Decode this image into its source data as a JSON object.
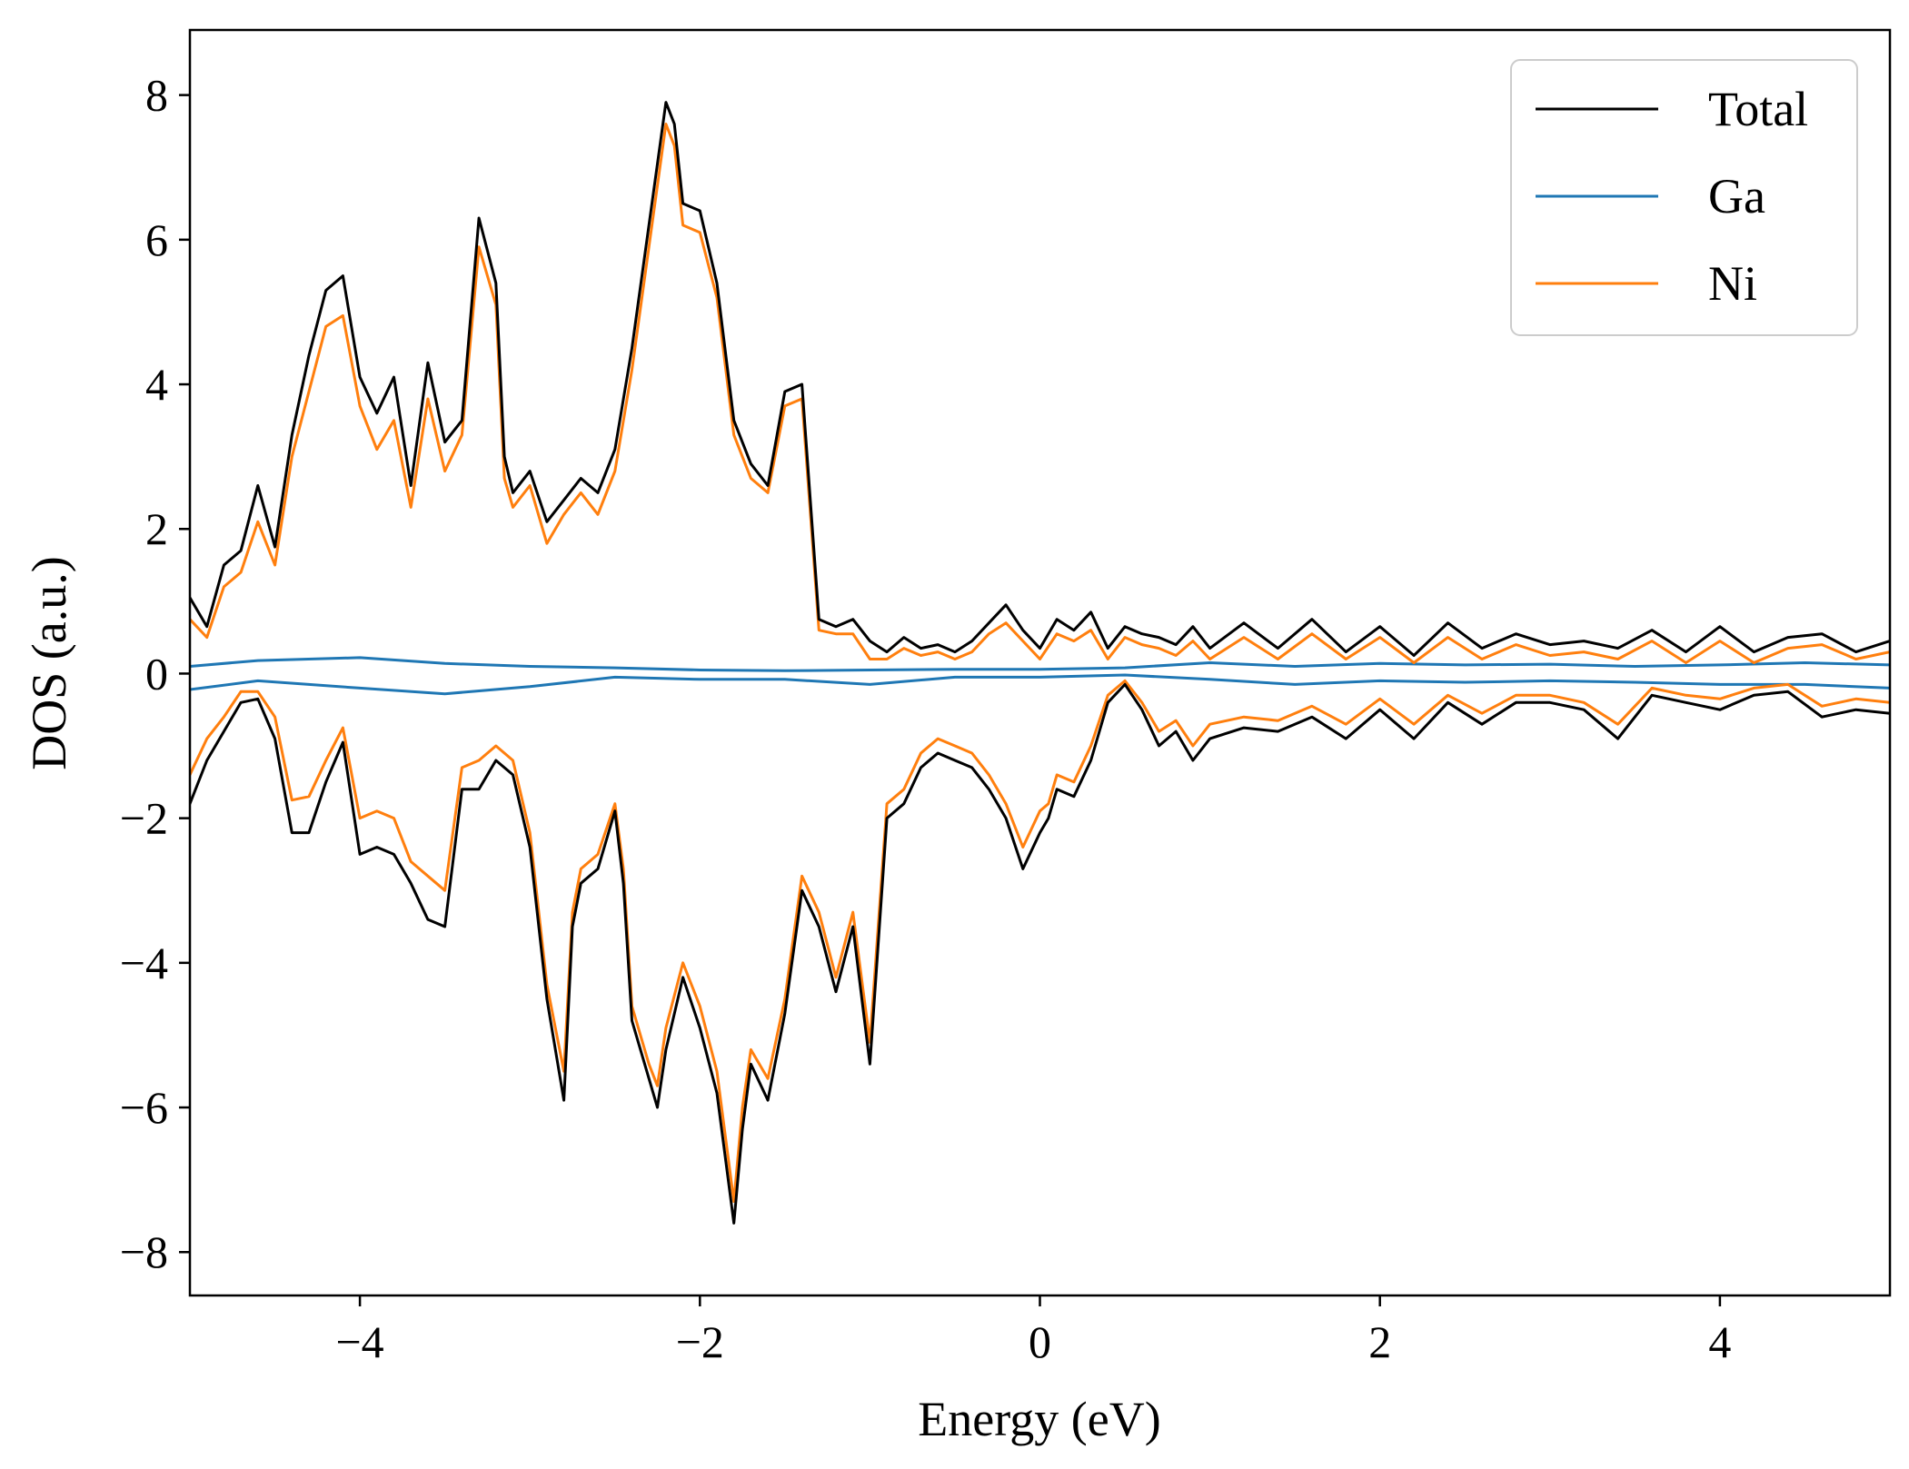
{
  "chart_data": {
    "type": "line",
    "title": "",
    "xlabel": "Energy (eV)",
    "ylabel": "DOS (a.u.)",
    "xlim": [
      -5,
      5
    ],
    "ylim": [
      -8.6,
      8.9
    ],
    "xticks": [
      -4,
      -2,
      0,
      2,
      4
    ],
    "xtick_labels": [
      "−4",
      "−2",
      "0",
      "2",
      "4"
    ],
    "yticks": [
      -8,
      -6,
      -4,
      -2,
      0,
      2,
      4,
      6,
      8
    ],
    "ytick_labels": [
      "−8",
      "−6",
      "−4",
      "−2",
      "0",
      "2",
      "4",
      "6",
      "8"
    ],
    "grid": false,
    "legend_position": "top-right",
    "series": [
      {
        "name": "Total",
        "color": "#000000",
        "spin_up": {
          "x": [
            -5.0,
            -4.9,
            -4.8,
            -4.7,
            -4.6,
            -4.5,
            -4.4,
            -4.3,
            -4.2,
            -4.1,
            -4.0,
            -3.9,
            -3.8,
            -3.7,
            -3.6,
            -3.5,
            -3.4,
            -3.3,
            -3.2,
            -3.15,
            -3.1,
            -3.0,
            -2.9,
            -2.8,
            -2.7,
            -2.6,
            -2.5,
            -2.4,
            -2.3,
            -2.2,
            -2.15,
            -2.1,
            -2.0,
            -1.9,
            -1.8,
            -1.7,
            -1.6,
            -1.5,
            -1.4,
            -1.3,
            -1.2,
            -1.1,
            -1.0,
            -0.9,
            -0.8,
            -0.7,
            -0.6,
            -0.5,
            -0.4,
            -0.3,
            -0.2,
            -0.1,
            0.0,
            0.1,
            0.2,
            0.3,
            0.4,
            0.5,
            0.6,
            0.7,
            0.8,
            0.9,
            1.0,
            1.2,
            1.4,
            1.6,
            1.8,
            2.0,
            2.2,
            2.4,
            2.6,
            2.8,
            3.0,
            3.2,
            3.4,
            3.6,
            3.8,
            4.0,
            4.2,
            4.4,
            4.6,
            4.8,
            5.0
          ],
          "y": [
            1.05,
            0.65,
            1.5,
            1.7,
            2.6,
            1.75,
            3.3,
            4.4,
            5.3,
            5.5,
            4.1,
            3.6,
            4.1,
            2.6,
            4.3,
            3.2,
            3.5,
            6.3,
            5.4,
            3.0,
            2.5,
            2.8,
            2.1,
            2.4,
            2.7,
            2.5,
            3.1,
            4.5,
            6.2,
            7.9,
            7.6,
            6.5,
            6.4,
            5.4,
            3.5,
            2.9,
            2.6,
            3.9,
            4.0,
            0.75,
            0.65,
            0.75,
            0.45,
            0.3,
            0.5,
            0.35,
            0.4,
            0.3,
            0.45,
            0.7,
            0.95,
            0.6,
            0.35,
            0.75,
            0.6,
            0.85,
            0.35,
            0.65,
            0.55,
            0.5,
            0.4,
            0.65,
            0.35,
            0.7,
            0.35,
            0.75,
            0.3,
            0.65,
            0.25,
            0.7,
            0.35,
            0.55,
            0.4,
            0.45,
            0.35,
            0.6,
            0.3,
            0.65,
            0.3,
            0.5,
            0.55,
            0.3,
            0.45
          ]
        },
        "spin_down": {
          "x": [
            -5.0,
            -4.9,
            -4.8,
            -4.7,
            -4.6,
            -4.5,
            -4.4,
            -4.3,
            -4.2,
            -4.1,
            -4.0,
            -3.9,
            -3.8,
            -3.7,
            -3.6,
            -3.5,
            -3.4,
            -3.3,
            -3.2,
            -3.1,
            -3.0,
            -2.9,
            -2.8,
            -2.75,
            -2.7,
            -2.6,
            -2.5,
            -2.45,
            -2.4,
            -2.3,
            -2.25,
            -2.2,
            -2.1,
            -2.0,
            -1.9,
            -1.8,
            -1.75,
            -1.7,
            -1.6,
            -1.5,
            -1.4,
            -1.3,
            -1.2,
            -1.1,
            -1.0,
            -0.9,
            -0.8,
            -0.7,
            -0.6,
            -0.5,
            -0.4,
            -0.3,
            -0.2,
            -0.1,
            0.0,
            0.05,
            0.1,
            0.2,
            0.3,
            0.4,
            0.5,
            0.6,
            0.7,
            0.8,
            0.9,
            1.0,
            1.2,
            1.4,
            1.6,
            1.8,
            2.0,
            2.2,
            2.4,
            2.6,
            2.8,
            3.0,
            3.2,
            3.4,
            3.6,
            3.8,
            4.0,
            4.2,
            4.4,
            4.6,
            4.8,
            5.0
          ],
          "y": [
            -1.8,
            -1.2,
            -0.8,
            -0.4,
            -0.35,
            -0.9,
            -2.2,
            -2.2,
            -1.5,
            -0.95,
            -2.5,
            -2.4,
            -2.5,
            -2.9,
            -3.4,
            -3.5,
            -1.6,
            -1.6,
            -1.2,
            -1.4,
            -2.4,
            -4.5,
            -5.9,
            -3.5,
            -2.9,
            -2.7,
            -1.9,
            -2.9,
            -4.8,
            -5.6,
            -6.0,
            -5.2,
            -4.2,
            -4.9,
            -5.8,
            -7.6,
            -6.3,
            -5.4,
            -5.9,
            -4.7,
            -3.0,
            -3.5,
            -4.4,
            -3.5,
            -5.4,
            -2.0,
            -1.8,
            -1.3,
            -1.1,
            -1.2,
            -1.3,
            -1.6,
            -2.0,
            -2.7,
            -2.2,
            -2.0,
            -1.6,
            -1.7,
            -1.2,
            -0.4,
            -0.15,
            -0.5,
            -1.0,
            -0.8,
            -1.2,
            -0.9,
            -0.75,
            -0.8,
            -0.6,
            -0.9,
            -0.5,
            -0.9,
            -0.4,
            -0.7,
            -0.4,
            -0.4,
            -0.5,
            -0.9,
            -0.3,
            -0.4,
            -0.5,
            -0.3,
            -0.25,
            -0.6,
            -0.5,
            -0.55
          ]
        }
      },
      {
        "name": "Ga",
        "color": "#1f77b4",
        "spin_up": {
          "x": [
            -5.0,
            -4.6,
            -4.0,
            -3.5,
            -3.0,
            -2.5,
            -2.0,
            -1.5,
            -1.0,
            -0.5,
            0.0,
            0.5,
            1.0,
            1.5,
            2.0,
            2.5,
            3.0,
            3.5,
            4.0,
            4.5,
            5.0
          ],
          "y": [
            0.1,
            0.18,
            0.22,
            0.14,
            0.1,
            0.08,
            0.05,
            0.04,
            0.05,
            0.06,
            0.06,
            0.08,
            0.15,
            0.1,
            0.14,
            0.12,
            0.13,
            0.1,
            0.12,
            0.15,
            0.12
          ]
        },
        "spin_down": {
          "x": [
            -5.0,
            -4.6,
            -4.0,
            -3.5,
            -3.0,
            -2.5,
            -2.0,
            -1.5,
            -1.0,
            -0.5,
            0.0,
            0.5,
            1.0,
            1.5,
            2.0,
            2.5,
            3.0,
            3.5,
            4.0,
            4.5,
            5.0
          ],
          "y": [
            -0.22,
            -0.1,
            -0.2,
            -0.28,
            -0.18,
            -0.05,
            -0.08,
            -0.08,
            -0.15,
            -0.05,
            -0.05,
            -0.02,
            -0.08,
            -0.15,
            -0.1,
            -0.12,
            -0.1,
            -0.12,
            -0.15,
            -0.15,
            -0.2
          ]
        }
      },
      {
        "name": "Ni",
        "color": "#ff7f0e",
        "spin_up": {
          "x": [
            -5.0,
            -4.9,
            -4.8,
            -4.7,
            -4.6,
            -4.5,
            -4.4,
            -4.3,
            -4.2,
            -4.1,
            -4.0,
            -3.9,
            -3.8,
            -3.7,
            -3.6,
            -3.5,
            -3.4,
            -3.3,
            -3.2,
            -3.15,
            -3.1,
            -3.0,
            -2.9,
            -2.8,
            -2.7,
            -2.6,
            -2.5,
            -2.4,
            -2.3,
            -2.2,
            -2.15,
            -2.1,
            -2.0,
            -1.9,
            -1.8,
            -1.7,
            -1.6,
            -1.5,
            -1.4,
            -1.3,
            -1.2,
            -1.1,
            -1.0,
            -0.9,
            -0.8,
            -0.7,
            -0.6,
            -0.5,
            -0.4,
            -0.3,
            -0.2,
            -0.1,
            0.0,
            0.1,
            0.2,
            0.3,
            0.4,
            0.5,
            0.6,
            0.7,
            0.8,
            0.9,
            1.0,
            1.2,
            1.4,
            1.6,
            1.8,
            2.0,
            2.2,
            2.4,
            2.6,
            2.8,
            3.0,
            3.2,
            3.4,
            3.6,
            3.8,
            4.0,
            4.2,
            4.4,
            4.6,
            4.8,
            5.0
          ],
          "y": [
            0.75,
            0.5,
            1.2,
            1.4,
            2.1,
            1.5,
            3.0,
            3.9,
            4.8,
            4.95,
            3.7,
            3.1,
            3.5,
            2.3,
            3.8,
            2.8,
            3.3,
            5.9,
            5.1,
            2.7,
            2.3,
            2.6,
            1.8,
            2.2,
            2.5,
            2.2,
            2.8,
            4.2,
            5.9,
            7.6,
            7.3,
            6.2,
            6.1,
            5.2,
            3.3,
            2.7,
            2.5,
            3.7,
            3.8,
            0.6,
            0.55,
            0.55,
            0.2,
            0.2,
            0.35,
            0.25,
            0.3,
            0.2,
            0.3,
            0.55,
            0.7,
            0.45,
            0.2,
            0.55,
            0.45,
            0.6,
            0.2,
            0.5,
            0.4,
            0.35,
            0.25,
            0.45,
            0.2,
            0.5,
            0.2,
            0.55,
            0.2,
            0.5,
            0.15,
            0.5,
            0.2,
            0.4,
            0.25,
            0.3,
            0.2,
            0.45,
            0.15,
            0.45,
            0.15,
            0.35,
            0.4,
            0.2,
            0.3
          ]
        },
        "spin_down": {
          "x": [
            -5.0,
            -4.9,
            -4.8,
            -4.7,
            -4.6,
            -4.5,
            -4.4,
            -4.3,
            -4.2,
            -4.1,
            -4.0,
            -3.9,
            -3.8,
            -3.7,
            -3.6,
            -3.5,
            -3.4,
            -3.3,
            -3.2,
            -3.1,
            -3.0,
            -2.9,
            -2.8,
            -2.75,
            -2.7,
            -2.6,
            -2.5,
            -2.45,
            -2.4,
            -2.3,
            -2.25,
            -2.2,
            -2.1,
            -2.0,
            -1.9,
            -1.8,
            -1.75,
            -1.7,
            -1.6,
            -1.5,
            -1.4,
            -1.3,
            -1.2,
            -1.1,
            -1.0,
            -0.9,
            -0.8,
            -0.7,
            -0.6,
            -0.5,
            -0.4,
            -0.3,
            -0.2,
            -0.1,
            0.0,
            0.05,
            0.1,
            0.2,
            0.3,
            0.4,
            0.5,
            0.6,
            0.7,
            0.8,
            0.9,
            1.0,
            1.2,
            1.4,
            1.6,
            1.8,
            2.0,
            2.2,
            2.4,
            2.6,
            2.8,
            3.0,
            3.2,
            3.4,
            3.6,
            3.8,
            4.0,
            4.2,
            4.4,
            4.6,
            4.8,
            5.0
          ],
          "y": [
            -1.4,
            -0.9,
            -0.6,
            -0.25,
            -0.25,
            -0.6,
            -1.75,
            -1.7,
            -1.2,
            -0.75,
            -2.0,
            -1.9,
            -2.0,
            -2.6,
            -2.8,
            -3.0,
            -1.3,
            -1.2,
            -1.0,
            -1.2,
            -2.2,
            -4.3,
            -5.5,
            -3.3,
            -2.7,
            -2.5,
            -1.8,
            -2.7,
            -4.6,
            -5.4,
            -5.7,
            -4.9,
            -4.0,
            -4.6,
            -5.5,
            -7.3,
            -6.0,
            -5.2,
            -5.6,
            -4.5,
            -2.8,
            -3.3,
            -4.2,
            -3.3,
            -5.1,
            -1.8,
            -1.6,
            -1.1,
            -0.9,
            -1.0,
            -1.1,
            -1.4,
            -1.8,
            -2.4,
            -1.9,
            -1.8,
            -1.4,
            -1.5,
            -1.0,
            -0.3,
            -0.1,
            -0.4,
            -0.8,
            -0.65,
            -1.0,
            -0.7,
            -0.6,
            -0.65,
            -0.45,
            -0.7,
            -0.35,
            -0.7,
            -0.3,
            -0.55,
            -0.3,
            -0.3,
            -0.4,
            -0.7,
            -0.2,
            -0.3,
            -0.35,
            -0.2,
            -0.15,
            -0.45,
            -0.35,
            -0.4
          ]
        }
      }
    ]
  }
}
